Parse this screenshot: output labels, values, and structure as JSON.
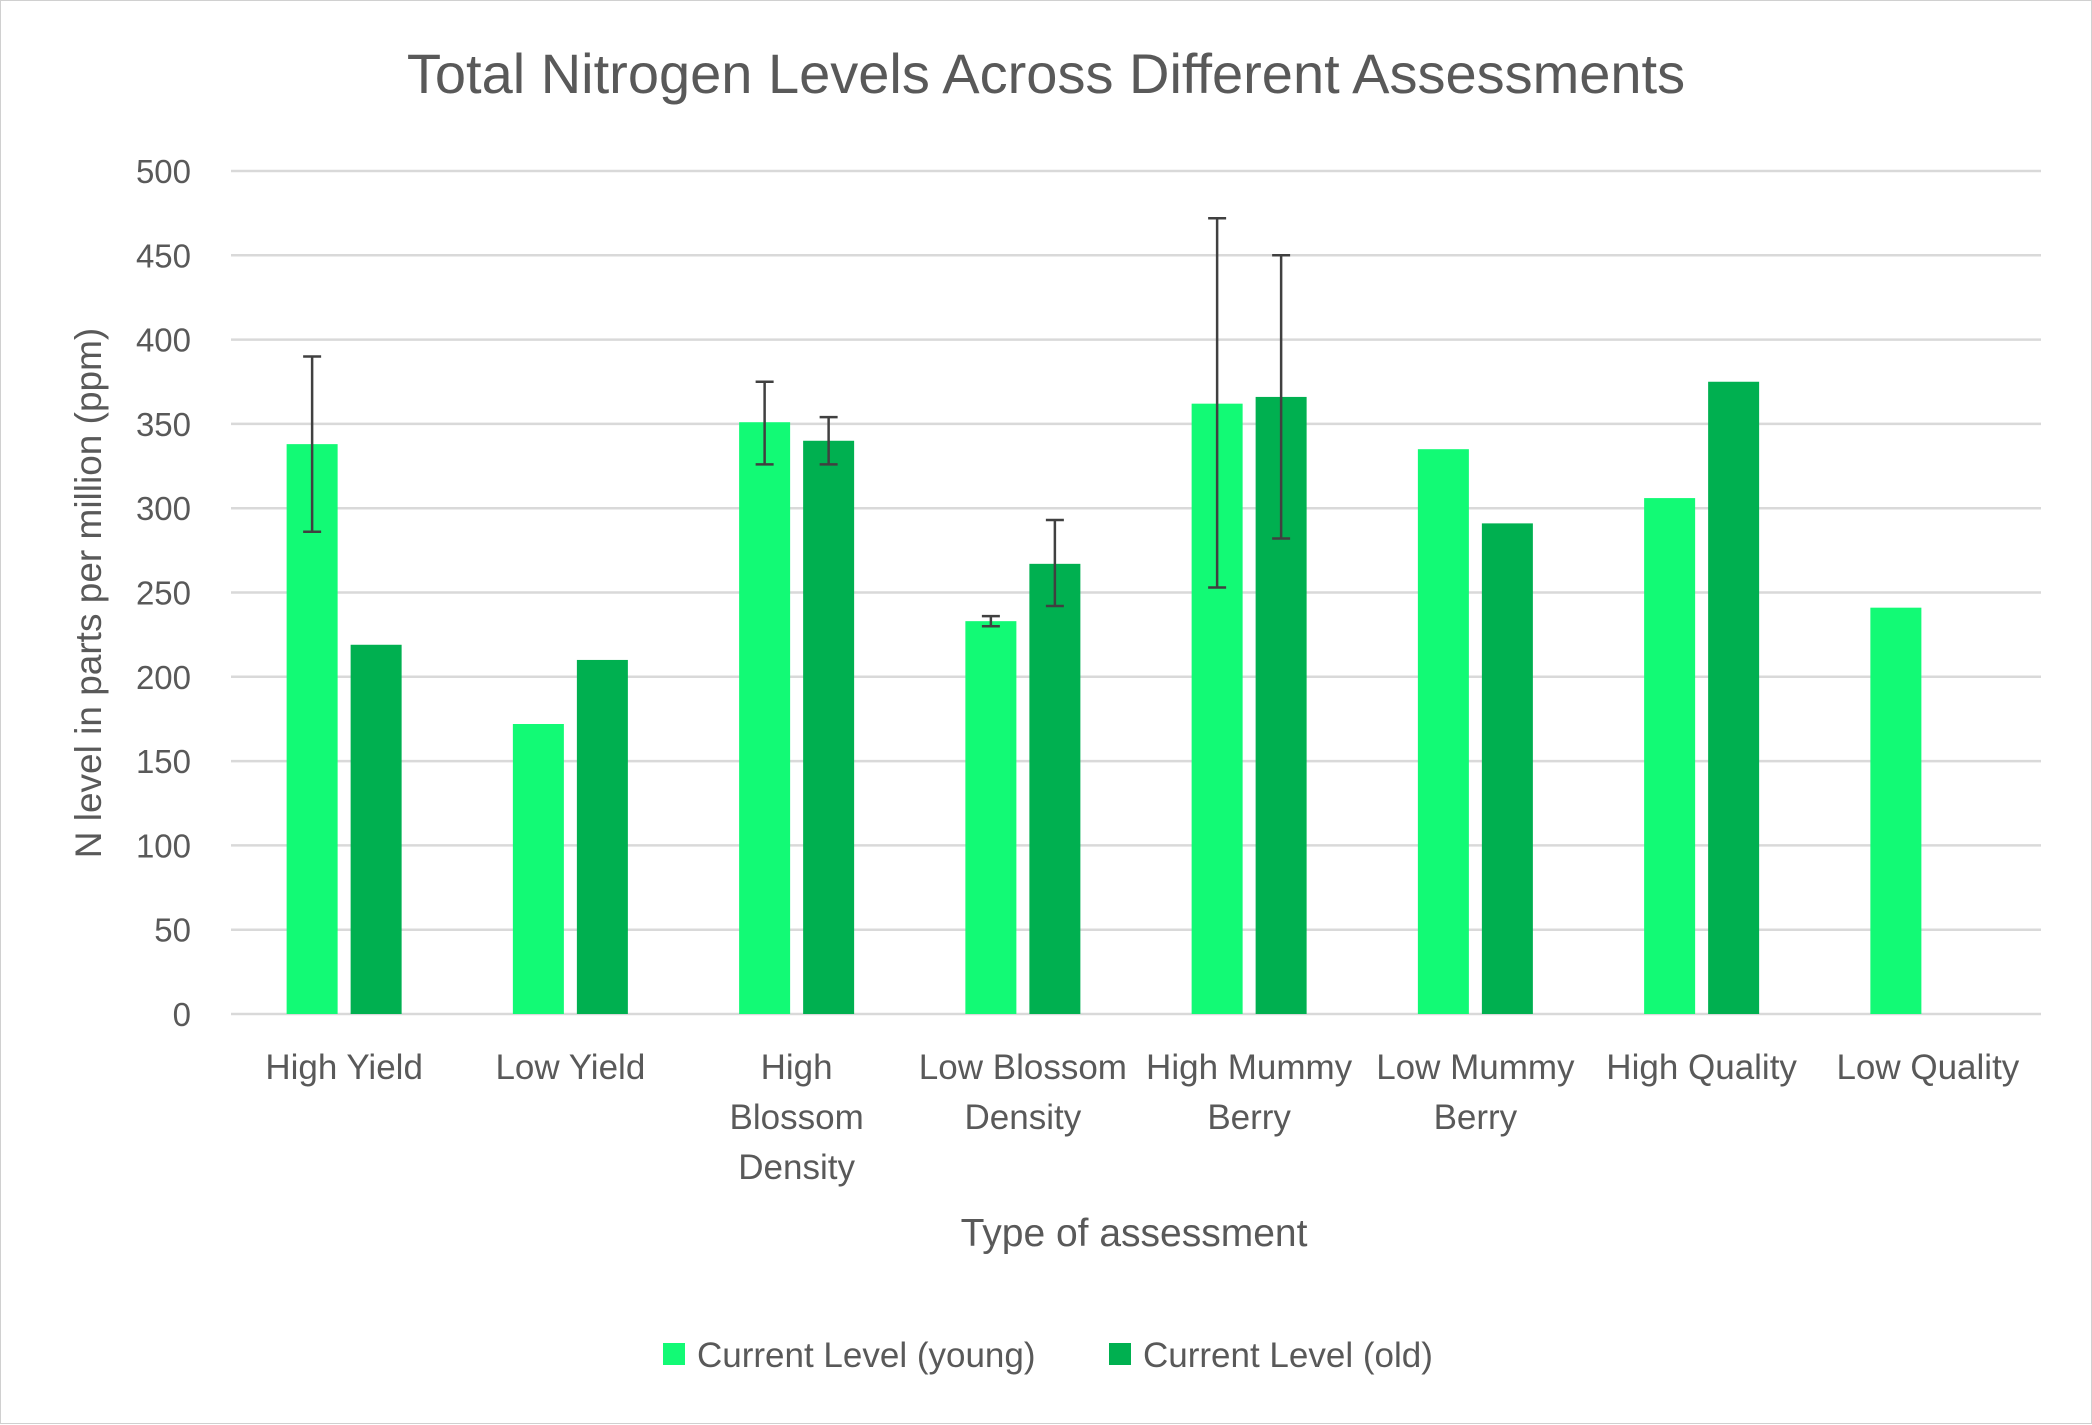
{
  "chart_data": {
    "type": "bar",
    "title": "Total Nitrogen Levels Across Different Assessments",
    "xlabel": "Type of assessment",
    "ylabel": "N level in parts per million (ppm)",
    "ylim": [
      0,
      500
    ],
    "yticks": [
      0,
      50,
      100,
      150,
      200,
      250,
      300,
      350,
      400,
      450,
      500
    ],
    "grid": true,
    "legend_position": "bottom",
    "categories": [
      [
        "High Yield"
      ],
      [
        "Low Yield"
      ],
      [
        "High",
        "Blossom",
        "Density"
      ],
      [
        "Low Blossom",
        "Density"
      ],
      [
        "High Mummy",
        "Berry"
      ],
      [
        "Low Mummy",
        "Berry"
      ],
      [
        "High Quality"
      ],
      [
        "Low Quality"
      ]
    ],
    "series": [
      {
        "name": "Current Level (young)",
        "color": "#12fa75",
        "values": [
          338,
          172,
          351,
          233,
          362,
          335,
          306,
          241
        ],
        "error": [
          [
            286,
            390
          ],
          null,
          [
            326,
            375
          ],
          [
            230,
            236
          ],
          [
            253,
            472
          ],
          null,
          null,
          null
        ]
      },
      {
        "name": "Current Level (old)",
        "color": "#00b050",
        "values": [
          219,
          210,
          340,
          267,
          366,
          291,
          375,
          null
        ],
        "error": [
          null,
          null,
          [
            326,
            354
          ],
          [
            242,
            293
          ],
          [
            282,
            450
          ],
          null,
          null,
          null
        ]
      }
    ],
    "gridline_color": "#d9d9d9",
    "error_bar_color": "#404040"
  }
}
